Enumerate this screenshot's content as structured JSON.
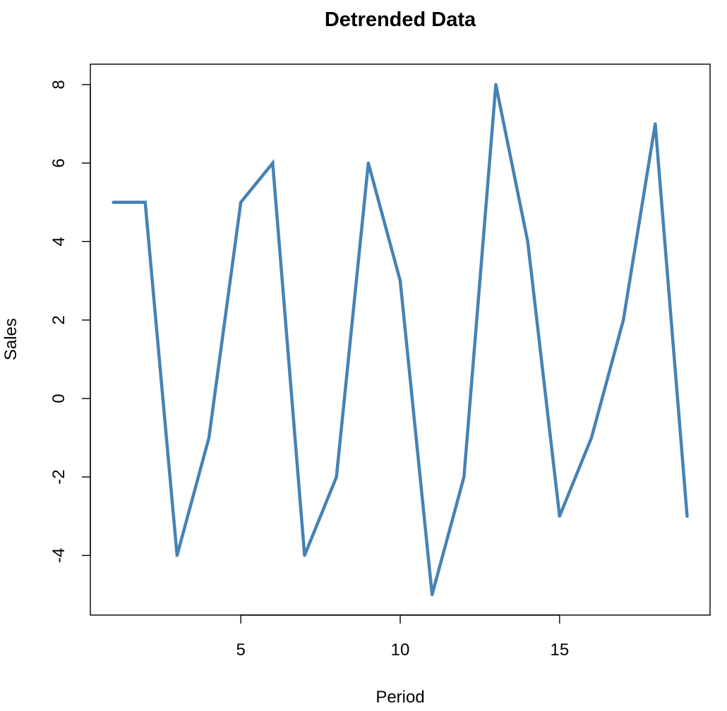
{
  "chart_data": {
    "type": "line",
    "title": "Detrended Data",
    "xlabel": "Period",
    "ylabel": "Sales",
    "x": [
      1,
      2,
      3,
      4,
      5,
      6,
      7,
      8,
      9,
      10,
      11,
      12,
      13,
      14,
      15,
      16,
      17,
      18,
      19
    ],
    "series": [
      {
        "values": [
          5,
          5,
          -4,
          -1,
          5,
          6,
          -4,
          -2,
          6,
          3,
          -5,
          -2,
          8,
          4,
          -3,
          -1,
          2,
          7,
          -3
        ],
        "color": "#4682b4"
      }
    ],
    "xlim": [
      0.28,
      19.72
    ],
    "ylim": [
      -5.52,
      8.52
    ],
    "xticks": [
      5,
      10,
      15
    ],
    "yticks": [
      -4,
      -2,
      0,
      2,
      4,
      6,
      8
    ],
    "grid": false
  }
}
